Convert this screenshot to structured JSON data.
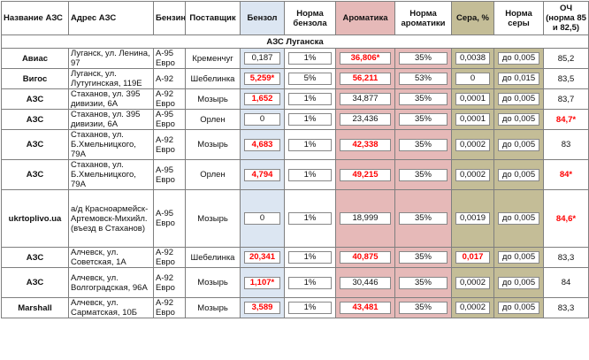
{
  "headers": {
    "station": "Название АЗС",
    "address": "Адрес АЗС",
    "fuel": "Бензин",
    "supplier": "Поставщик",
    "benzene": "Бензол",
    "benzene_norm": "Норма бензола",
    "aromatics": "Ароматика",
    "aromatics_norm": "Норма ароматики",
    "sulfur": "Сера, %",
    "sulfur_norm": "Норма серы",
    "octane": "ОЧ (норма 85 и 82,5)"
  },
  "region": "АЗС Луганска",
  "colors": {
    "benzene_bg": "#dce6f2",
    "aromatics_bg": "#e6b9b8",
    "sulfur_bg": "#c4bd97",
    "violation_text": "#ff0000"
  },
  "rows": [
    {
      "station": "Авиас",
      "address": "Луганск, ул. Ленина, 97",
      "fuel": "А-95 Евро",
      "supplier": "Кременчуг",
      "benzene": "0,187",
      "benzene_norm": "1%",
      "aromatics": "36,806*",
      "aromatics_norm": "35%",
      "sulfur": "0,0038",
      "sulfur_norm": "до 0,005",
      "octane": "85,2"
    },
    {
      "station": "Вигос",
      "address": "Луганск, ул. Лутугинская, 119Е",
      "fuel": "А-92",
      "supplier": "Шебелинка",
      "benzene": "5,259*",
      "benzene_norm": "5%",
      "aromatics": "56,211",
      "aromatics_norm": "53%",
      "sulfur": "0",
      "sulfur_norm": "до 0,015",
      "octane": "83,5"
    },
    {
      "station": "АЗС",
      "address": "Стаханов, ул. 395 дивизии, 6А",
      "fuel": "А-92 Евро",
      "supplier": "Мозырь",
      "benzene": "1,652",
      "benzene_norm": "1%",
      "aromatics": "34,877",
      "aromatics_norm": "35%",
      "sulfur": "0,0001",
      "sulfur_norm": "до 0,005",
      "octane": "83,7"
    },
    {
      "station": "АЗС",
      "address": "Стаханов, ул. 395 дивизии, 6А",
      "fuel": "А-95 Евро",
      "supplier": "Орлен",
      "benzene": "0",
      "benzene_norm": "1%",
      "aromatics": "23,436",
      "aromatics_norm": "35%",
      "sulfur": "0,0001",
      "sulfur_norm": "до 0,005",
      "octane": "84,7*"
    },
    {
      "station": "АЗС",
      "address": "Стаханов, ул. Б.Хмельницкого, 79А",
      "fuel": "А-92 Евро",
      "supplier": "Мозырь",
      "benzene": "4,683",
      "benzene_norm": "1%",
      "aromatics": "42,338",
      "aromatics_norm": "35%",
      "sulfur": "0,0002",
      "sulfur_norm": "до 0,005",
      "octane": "83"
    },
    {
      "station": "АЗС",
      "address": "Стаханов, ул. Б.Хмельницкого, 79А",
      "fuel": "А-95 Евро",
      "supplier": "Орлен",
      "benzene": "4,794",
      "benzene_norm": "1%",
      "aromatics": "49,215",
      "aromatics_norm": "35%",
      "sulfur": "0,0002",
      "sulfur_norm": "до 0,005",
      "octane": "84*"
    },
    {
      "station": "ukrtoplivo.ua",
      "address": "а/д Красноармейск-Артемовск-Михийл. (въезд в Стаханов)",
      "fuel": "А-95 Евро",
      "supplier": "Мозырь",
      "benzene": "0",
      "benzene_norm": "1%",
      "aromatics": "18,999",
      "aromatics_norm": "35%",
      "sulfur": "0,0019",
      "sulfur_norm": "до 0,005",
      "octane": "84,6*"
    },
    {
      "station": "АЗС",
      "address": "Алчевск, ул. Советская, 1А",
      "fuel": "А-92 Евро",
      "supplier": "Шебелинка",
      "benzene": "20,341",
      "benzene_norm": "1%",
      "aromatics": "40,875",
      "aromatics_norm": "35%",
      "sulfur": "0,017",
      "sulfur_norm": "до 0,005",
      "octane": "83,3"
    },
    {
      "station": "АЗС",
      "address": "Алчевск, ул. Волгоградская, 96А",
      "fuel": "А-92 Евро",
      "supplier": "Мозырь",
      "benzene": "1,107*",
      "benzene_norm": "1%",
      "aromatics": "30,446",
      "aromatics_norm": "35%",
      "sulfur": "0,0002",
      "sulfur_norm": "до 0,005",
      "octane": "84"
    },
    {
      "station": "Marshall",
      "address": "Алчевск, ул. Сарматская, 10Б",
      "fuel": "А-92 Евро",
      "supplier": "Мозырь",
      "benzene": "3,589",
      "benzene_norm": "1%",
      "aromatics": "43,481",
      "aromatics_norm": "35%",
      "sulfur": "0,0002",
      "sulfur_norm": "до 0,005",
      "octane": "83,3"
    }
  ]
}
